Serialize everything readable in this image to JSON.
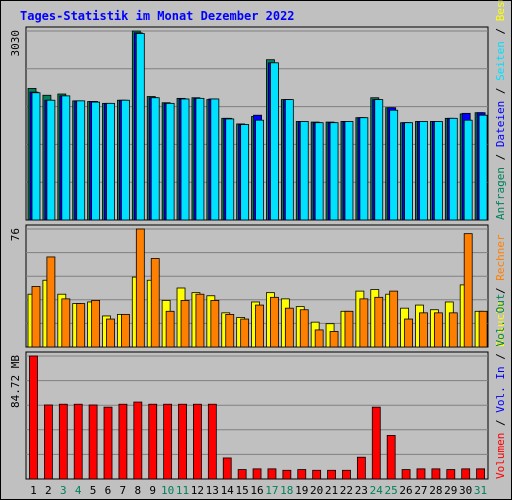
{
  "chart_data": {
    "title": "Tages-Statistik im Monat Dezember 2022",
    "type": "bar",
    "days": [
      {
        "label": "1",
        "weekend": false
      },
      {
        "label": "2",
        "weekend": false
      },
      {
        "label": "3",
        "weekend": true
      },
      {
        "label": "4",
        "weekend": true
      },
      {
        "label": "5",
        "weekend": false
      },
      {
        "label": "6",
        "weekend": false
      },
      {
        "label": "7",
        "weekend": false
      },
      {
        "label": "8",
        "weekend": false
      },
      {
        "label": "9",
        "weekend": false
      },
      {
        "label": "10",
        "weekend": true
      },
      {
        "label": "11",
        "weekend": true
      },
      {
        "label": "12",
        "weekend": false
      },
      {
        "label": "13",
        "weekend": false
      },
      {
        "label": "14",
        "weekend": false
      },
      {
        "label": "15",
        "weekend": false
      },
      {
        "label": "16",
        "weekend": false
      },
      {
        "label": "17",
        "weekend": true
      },
      {
        "label": "18",
        "weekend": true
      },
      {
        "label": "19",
        "weekend": false
      },
      {
        "label": "20",
        "weekend": false
      },
      {
        "label": "21",
        "weekend": false
      },
      {
        "label": "22",
        "weekend": false
      },
      {
        "label": "23",
        "weekend": false
      },
      {
        "label": "24",
        "weekend": true
      },
      {
        "label": "25",
        "weekend": true
      },
      {
        "label": "26",
        "weekend": false
      },
      {
        "label": "27",
        "weekend": false
      },
      {
        "label": "28",
        "weekend": false
      },
      {
        "label": "29",
        "weekend": false
      },
      {
        "label": "30",
        "weekend": false
      },
      {
        "label": "31",
        "weekend": true
      }
    ],
    "panels": [
      {
        "ymax_label": "3030",
        "ymax": 3030,
        "right_label": [
          {
            "text": "Anfragen",
            "color": "#00805c"
          },
          {
            "text": " / ",
            "color": "#000000"
          },
          {
            "text": "Dateien",
            "color": "#0000ff"
          },
          {
            "text": " / ",
            "color": "#000000"
          },
          {
            "text": "Seiten",
            "color": "#00e0ff"
          },
          {
            "text": " / ",
            "color": "#000000"
          },
          {
            "text": "Besuche",
            "color": "#ffff00"
          }
        ],
        "series": [
          {
            "key": "anfragen",
            "color": "#00805c",
            "values": [
              2110,
              2000,
              2020,
              1910,
              1900,
              1870,
              1920,
              3030,
              1980,
              1880,
              1950,
              1960,
              1930,
              1630,
              1540,
              1660,
              2570,
              1930,
              1580,
              1570,
              1570,
              1580,
              1640,
              1960,
              1800,
              1560,
              1580,
              1580,
              1630,
              1700,
              1720
            ]
          },
          {
            "key": "dateien",
            "color": "#0000ff",
            "values": [
              2050,
              1920,
              1990,
              1910,
              1900,
              1870,
              1920,
              3000,
              1960,
              1870,
              1940,
              1950,
              1940,
              1630,
              1530,
              1680,
              2520,
              1930,
              1580,
              1560,
              1560,
              1580,
              1640,
              1930,
              1800,
              1560,
              1580,
              1580,
              1630,
              1710,
              1720
            ]
          },
          {
            "key": "seiten",
            "color": "#00e0ff",
            "values": [
              2040,
              1920,
              1990,
              1910,
              1890,
              1870,
              1920,
              2990,
              1960,
              1870,
              1940,
              1950,
              1940,
              1620,
              1530,
              1600,
              2520,
              1930,
              1580,
              1560,
              1560,
              1580,
              1640,
              1930,
              1760,
              1560,
              1580,
              1580,
              1630,
              1600,
              1680
            ]
          }
        ]
      },
      {
        "ymax_label": "76",
        "ymax": 76,
        "right_label": [
          {
            "text": "Besuche",
            "color": "#ffff00"
          },
          {
            "text": " / ",
            "color": "#000000"
          },
          {
            "text": "Rechner",
            "color": "#ff8000"
          }
        ],
        "series": [
          {
            "key": "besuche",
            "color": "#ffff00",
            "values": [
              34,
              43,
              34,
              28,
              29,
              20,
              21,
              45,
              43,
              30,
              38,
              35,
              33,
              22,
              19,
              29,
              35,
              31,
              26,
              16,
              15,
              23,
              36,
              37,
              34,
              25,
              27,
              24,
              29,
              40,
              23
            ]
          },
          {
            "key": "rechner",
            "color": "#ff8000",
            "values": [
              39,
              58,
              31,
              28,
              30,
              18,
              21,
              76,
              57,
              23,
              30,
              34,
              30,
              21,
              18,
              27,
              32,
              25,
              24,
              11,
              10,
              23,
              31,
              32,
              36,
              18,
              22,
              22,
              22,
              73,
              23
            ]
          }
        ]
      },
      {
        "ymax_label": "84.72 MB",
        "ymax": 84.72,
        "right_label": [
          {
            "text": "Volumen",
            "color": "#ff0000"
          },
          {
            "text": " / ",
            "color": "#000000"
          },
          {
            "text": "Vol. In",
            "color": "#0000ff"
          },
          {
            "text": " / ",
            "color": "#000000"
          },
          {
            "text": "Vol. Out",
            "color": "#00805c"
          }
        ],
        "series": [
          {
            "key": "volumen",
            "color": "#ff0000",
            "values": [
              84.72,
              51,
              51.5,
              51.5,
              51,
              49.5,
              51.5,
              53,
              51.5,
              51.5,
              51.5,
              51.5,
              51.5,
              14.5,
              6.5,
              7,
              7,
              6,
              6.5,
              6,
              6,
              6,
              15,
              49.5,
              30,
              6.5,
              7,
              7,
              6.5,
              7,
              7
            ]
          }
        ]
      }
    ]
  }
}
